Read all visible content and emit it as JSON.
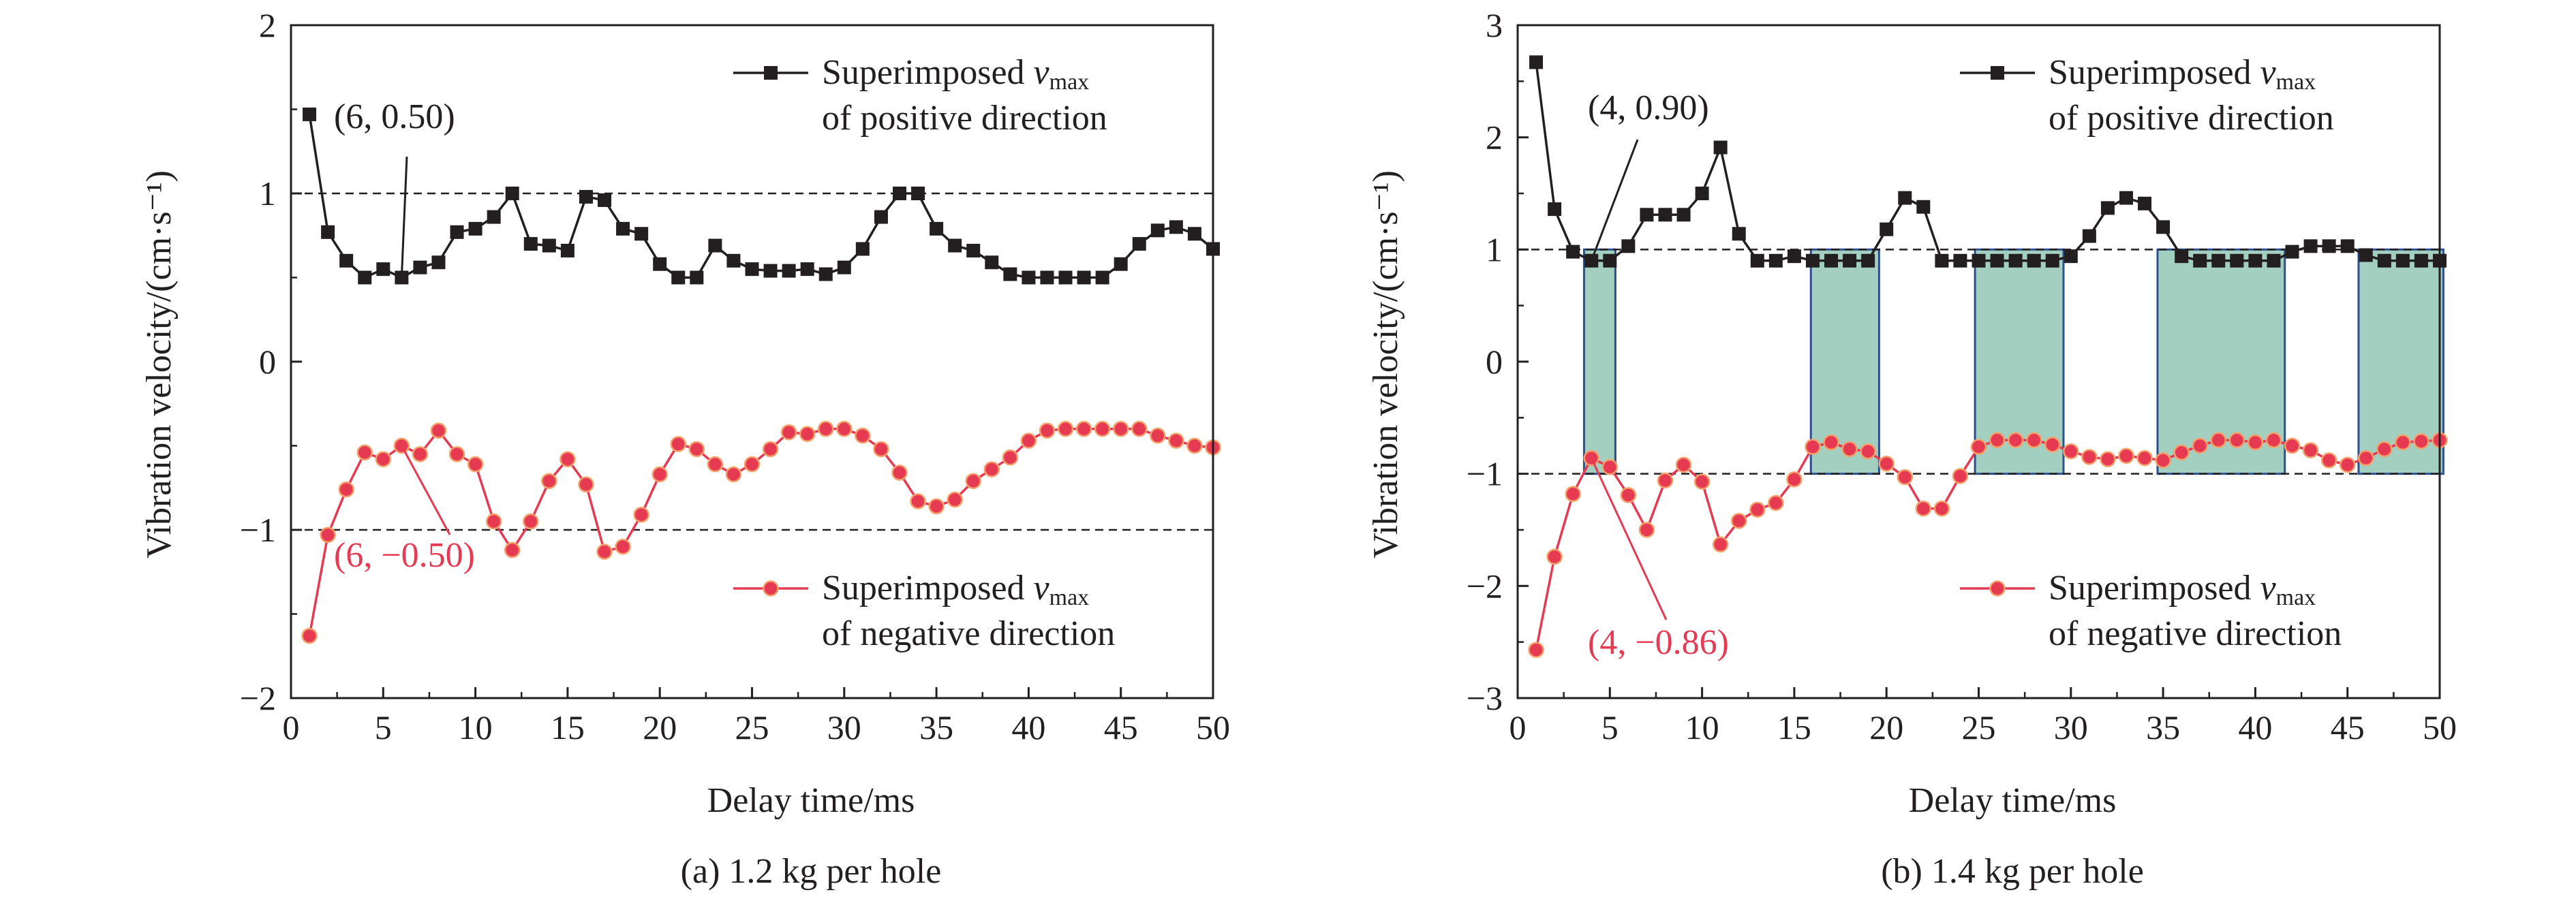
{
  "chart_data": [
    {
      "type": "line",
      "caption": "(a) 1.2 kg per hole",
      "xlabel": "Delay time/ms",
      "ylabel": "Vibration velocity/(cm·s⁻¹)",
      "xlim": [
        0,
        50
      ],
      "ylim": [
        -2,
        2
      ],
      "xticks": [
        0,
        5,
        10,
        15,
        20,
        25,
        30,
        35,
        40,
        45,
        50
      ],
      "yticks": [
        -2,
        -1,
        0,
        1,
        2
      ],
      "ytick_labels": [
        "−2",
        "−1",
        "0",
        "1",
        "2"
      ],
      "reference_lines": [
        1,
        -1
      ],
      "grid": false,
      "legend_position": "top-right and lower-right (one entry beside each series)",
      "x": [
        1,
        2,
        3,
        4,
        5,
        6,
        7,
        8,
        9,
        10,
        11,
        12,
        13,
        14,
        15,
        16,
        17,
        18,
        19,
        20,
        21,
        22,
        23,
        24,
        25,
        26,
        27,
        28,
        29,
        30,
        31,
        32,
        33,
        34,
        35,
        36,
        37,
        38,
        39,
        40,
        41,
        42,
        43,
        44,
        45,
        46,
        47,
        48,
        49,
        50
      ],
      "series": [
        {
          "name_prefix": "Superimposed ",
          "name_var": "v",
          "name_sub": "max",
          "name_line2": "of positive direction",
          "marker": "square",
          "color": "#231f20",
          "values": [
            1.47,
            0.77,
            0.6,
            0.5,
            0.55,
            0.5,
            0.56,
            0.59,
            0.77,
            0.79,
            0.86,
            1.0,
            0.7,
            0.69,
            0.66,
            0.98,
            0.96,
            0.79,
            0.76,
            0.58,
            0.5,
            0.5,
            0.69,
            0.6,
            0.55,
            0.54,
            0.54,
            0.55,
            0.52,
            0.56,
            0.67,
            0.86,
            1.0,
            1.0,
            0.79,
            0.69,
            0.66,
            0.59,
            0.52,
            0.5,
            0.5,
            0.5,
            0.5,
            0.5,
            0.58,
            0.7,
            0.78,
            0.8,
            0.76,
            0.67
          ]
        },
        {
          "name_prefix": "Superimposed ",
          "name_var": "v",
          "name_sub": "max",
          "name_line2": "of negative direction",
          "marker": "circle",
          "color": "#e53a52",
          "values": [
            -1.63,
            -1.03,
            -0.76,
            -0.54,
            -0.58,
            -0.5,
            -0.55,
            -0.41,
            -0.55,
            -0.61,
            -0.95,
            -1.12,
            -0.95,
            -0.71,
            -0.58,
            -0.73,
            -1.13,
            -1.1,
            -0.91,
            -0.67,
            -0.49,
            -0.52,
            -0.61,
            -0.67,
            -0.61,
            -0.52,
            -0.42,
            -0.43,
            -0.4,
            -0.4,
            -0.44,
            -0.52,
            -0.66,
            -0.83,
            -0.86,
            -0.82,
            -0.71,
            -0.64,
            -0.57,
            -0.47,
            -0.41,
            -0.4,
            -0.4,
            -0.4,
            -0.4,
            -0.4,
            -0.44,
            -0.47,
            -0.5,
            -0.51
          ]
        }
      ],
      "annotations": [
        {
          "text": "(6, 0.50)",
          "x": 6,
          "y": 0.5,
          "color": "#231f20"
        },
        {
          "text": "(6, −0.50)",
          "x": 6,
          "y": -0.5,
          "color": "#e53a52"
        }
      ]
    },
    {
      "type": "line",
      "caption": "(b) 1.4 kg per hole",
      "xlabel": "Delay time/ms",
      "ylabel": "Vibration velocity/(cm·s⁻¹)",
      "xlim": [
        0,
        50
      ],
      "ylim": [
        -3,
        3
      ],
      "xticks": [
        0,
        5,
        10,
        15,
        20,
        25,
        30,
        35,
        40,
        45,
        50
      ],
      "yticks": [
        -3,
        -2,
        -1,
        0,
        1,
        2,
        3
      ],
      "ytick_labels": [
        "−3",
        "−2",
        "−1",
        "0",
        "1",
        "2",
        "3"
      ],
      "reference_lines": [
        1,
        -1
      ],
      "grid": false,
      "legend_position": "top-right and lower-right (one entry beside each series)",
      "shaded_regions": [
        [
          3.6,
          5.3
        ],
        [
          15.9,
          19.6
        ],
        [
          24.8,
          29.6
        ],
        [
          34.7,
          41.6
        ],
        [
          45.6,
          50.2
        ]
      ],
      "shade_color": "#a3cfc0",
      "x": [
        1,
        2,
        3,
        4,
        5,
        6,
        7,
        8,
        9,
        10,
        11,
        12,
        13,
        14,
        15,
        16,
        17,
        18,
        19,
        20,
        21,
        22,
        23,
        24,
        25,
        26,
        27,
        28,
        29,
        30,
        31,
        32,
        33,
        34,
        35,
        36,
        37,
        38,
        39,
        40,
        41,
        42,
        43,
        44,
        45,
        46,
        47,
        48,
        49,
        50
      ],
      "series": [
        {
          "name_prefix": "Superimposed ",
          "name_var": "v",
          "name_sub": "max",
          "name_line2": "of positive direction",
          "marker": "square",
          "color": "#231f20",
          "values": [
            2.67,
            1.36,
            0.98,
            0.9,
            0.9,
            1.03,
            1.31,
            1.31,
            1.31,
            1.5,
            1.91,
            1.14,
            0.9,
            0.9,
            0.94,
            0.9,
            0.9,
            0.9,
            0.9,
            1.18,
            1.46,
            1.38,
            0.9,
            0.9,
            0.9,
            0.9,
            0.9,
            0.9,
            0.9,
            0.94,
            1.12,
            1.37,
            1.46,
            1.41,
            1.2,
            0.94,
            0.9,
            0.9,
            0.9,
            0.9,
            0.9,
            0.98,
            1.03,
            1.03,
            1.03,
            0.95,
            0.9,
            0.9,
            0.9,
            0.9
          ]
        },
        {
          "name_prefix": "Superimposed ",
          "name_var": "v",
          "name_sub": "max",
          "name_line2": "of negative direction",
          "marker": "circle",
          "color": "#e53a52",
          "values": [
            -2.57,
            -1.74,
            -1.18,
            -0.86,
            -0.94,
            -1.19,
            -1.5,
            -1.06,
            -0.92,
            -1.07,
            -1.63,
            -1.42,
            -1.32,
            -1.26,
            -1.05,
            -0.76,
            -0.72,
            -0.78,
            -0.8,
            -0.91,
            -1.03,
            -1.31,
            -1.31,
            -1.02,
            -0.76,
            -0.7,
            -0.7,
            -0.7,
            -0.74,
            -0.8,
            -0.85,
            -0.87,
            -0.84,
            -0.86,
            -0.88,
            -0.81,
            -0.75,
            -0.7,
            -0.7,
            -0.72,
            -0.7,
            -0.75,
            -0.79,
            -0.88,
            -0.92,
            -0.86,
            -0.78,
            -0.72,
            -0.71,
            -0.7
          ]
        }
      ],
      "annotations": [
        {
          "text": "(4, 0.90)",
          "x": 4,
          "y": 0.9,
          "color": "#231f20"
        },
        {
          "text": "(4, −0.86)",
          "x": 4,
          "y": -0.86,
          "color": "#e53a52"
        }
      ]
    }
  ]
}
